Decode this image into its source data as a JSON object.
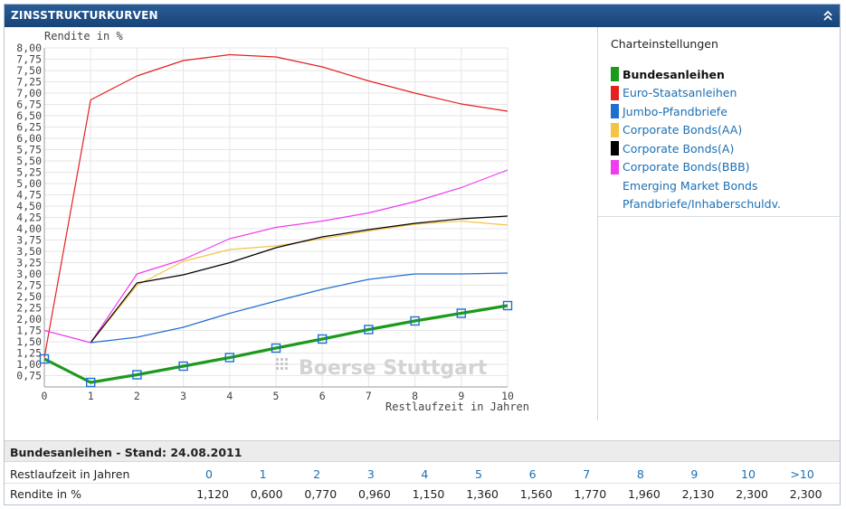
{
  "header": {
    "title": "ZINSSTRUKTURKURVEN"
  },
  "settings": {
    "title": "Charteinstellungen",
    "legend": [
      {
        "label": "Bundesanleihen",
        "color": "#1c9a1c",
        "active": true
      },
      {
        "label": "Euro-Staatsanleihen",
        "color": "#e52020",
        "active": false
      },
      {
        "label": "Jumbo-Pfandbriefe",
        "color": "#1f6fd0",
        "active": false
      },
      {
        "label": "Corporate Bonds(AA)",
        "color": "#f3c444",
        "active": false
      },
      {
        "label": "Corporate Bonds(A)",
        "color": "#000000",
        "active": false
      },
      {
        "label": "Corporate Bonds(BBB)",
        "color": "#ee3cee",
        "active": false
      },
      {
        "label": "Emerging Market Bonds",
        "color": "",
        "active": false
      },
      {
        "label": "Pfandbriefe/Inhaberschuldv.",
        "color": "",
        "active": false
      }
    ]
  },
  "chart_data": {
    "type": "line",
    "ylabel": "Rendite in %",
    "xlabel": "Restlaufzeit in Jahren",
    "watermark": "Boerse Stuttgart",
    "xlim": [
      0,
      10
    ],
    "ylim": [
      0.5,
      8.0
    ],
    "x_ticks": [
      "0",
      "1",
      "2",
      "3",
      "4",
      "5",
      "6",
      "7",
      "8",
      "9",
      "10"
    ],
    "y_ticks": [
      "0,75",
      "1,00",
      "1,25",
      "1,50",
      "1,75",
      "2,00",
      "2,25",
      "2,50",
      "2,75",
      "3,00",
      "3,25",
      "3,50",
      "3,75",
      "4,00",
      "4,25",
      "4,50",
      "4,75",
      "5,00",
      "5,25",
      "5,50",
      "5,75",
      "6,00",
      "6,25",
      "6,50",
      "6,75",
      "7,00",
      "7,25",
      "7,50",
      "7,75",
      "8,00"
    ],
    "grid": true,
    "x": [
      0,
      1,
      2,
      3,
      4,
      5,
      6,
      7,
      8,
      9,
      10
    ],
    "series": [
      {
        "name": "Euro-Staatsanleihen",
        "color": "#e52020",
        "width": 1.2,
        "markers": false,
        "values": [
          1.15,
          6.85,
          7.38,
          7.72,
          7.85,
          7.8,
          7.58,
          7.27,
          7.0,
          6.76,
          6.6
        ]
      },
      {
        "name": "Corporate Bonds(BBB)",
        "color": "#ee3cee",
        "width": 1.2,
        "markers": false,
        "values": [
          1.75,
          1.48,
          3.0,
          3.32,
          3.78,
          4.03,
          4.17,
          4.35,
          4.6,
          4.91,
          5.3
        ]
      },
      {
        "name": "Corporate Bonds(AA)",
        "color": "#f3c444",
        "width": 1.2,
        "markers": false,
        "values": [
          null,
          1.48,
          2.75,
          3.28,
          3.54,
          3.62,
          3.78,
          3.95,
          4.1,
          4.17,
          4.08
        ]
      },
      {
        "name": "Corporate Bonds(A)",
        "color": "#000000",
        "width": 1.2,
        "markers": false,
        "values": [
          null,
          1.48,
          2.8,
          2.98,
          3.25,
          3.58,
          3.82,
          3.98,
          4.12,
          4.22,
          4.28
        ]
      },
      {
        "name": "Jumbo-Pfandbriefe",
        "color": "#1f6fd0",
        "width": 1.2,
        "markers": false,
        "values": [
          null,
          1.48,
          1.6,
          1.82,
          2.13,
          2.4,
          2.66,
          2.88,
          3.0,
          3.0,
          3.02
        ]
      },
      {
        "name": "Bundesanleihen",
        "color": "#1c9a1c",
        "width": 3.2,
        "markers": true,
        "marker_color": "#1f6fd0",
        "values": [
          1.12,
          0.6,
          0.77,
          0.96,
          1.15,
          1.36,
          1.56,
          1.77,
          1.96,
          2.13,
          2.3
        ]
      }
    ]
  },
  "table": {
    "title": "Bundesanleihen - Stand: 24.08.2011",
    "header_label": "Restlaufzeit in Jahren",
    "value_label": "Rendite in %",
    "columns": [
      "0",
      "1",
      "2",
      "3",
      "4",
      "5",
      "6",
      "7",
      "8",
      "9",
      "10",
      ">10"
    ],
    "values": [
      "1,120",
      "0,600",
      "0,770",
      "0,960",
      "1,150",
      "1,360",
      "1,560",
      "1,770",
      "1,960",
      "2,130",
      "2,300",
      "2,300"
    ]
  }
}
